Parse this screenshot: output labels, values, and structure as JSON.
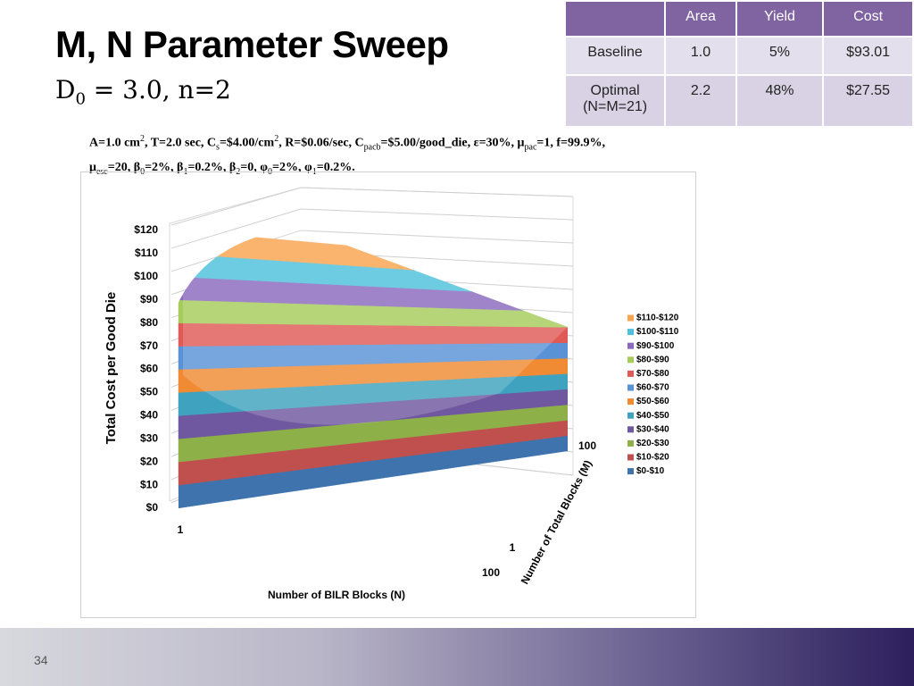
{
  "title": "M, N Parameter Sweep",
  "subtitle": {
    "base": "D",
    "sub": "0",
    "rest": " = 3.0, n=2"
  },
  "parameters": [
    [
      {
        "text": "A=1.0 cm"
      },
      {
        "text": "2",
        "script": "sup"
      },
      {
        "text": ", T=2.0 sec, C"
      },
      {
        "text": "s",
        "script": "sub"
      },
      {
        "text": "=$4.00/cm"
      },
      {
        "text": "2",
        "script": "sup"
      },
      {
        "text": ", R=$0.06/sec, C"
      },
      {
        "text": "pacb",
        "script": "sub"
      },
      {
        "text": "=$5.00/good_die, ε=30%, μ"
      },
      {
        "text": "pac",
        "script": "sub"
      },
      {
        "text": "=1, f=99.9%,"
      }
    ],
    [
      {
        "text": "μ"
      },
      {
        "text": "esc",
        "script": "sub"
      },
      {
        "text": "=20, β"
      },
      {
        "text": "0",
        "script": "sub"
      },
      {
        "text": "=2%, β"
      },
      {
        "text": "1",
        "script": "sub"
      },
      {
        "text": "=0.2%, β"
      },
      {
        "text": "2",
        "script": "sub"
      },
      {
        "text": "=0, φ"
      },
      {
        "text": "0",
        "script": "sub"
      },
      {
        "text": "=2%, φ"
      },
      {
        "text": "1",
        "script": "sub"
      },
      {
        "text": "=0.2%."
      }
    ]
  ],
  "table": {
    "header": [
      "Area",
      "Yield",
      "Cost"
    ],
    "rows": [
      [
        "Baseline",
        "1.0",
        "5%",
        "$93.01"
      ],
      [
        "Optimal (N=M=21)",
        "2.2",
        "48%",
        "$27.55"
      ]
    ]
  },
  "chart_data": {
    "type": "surface3d",
    "xlabel": "Number of BILR Blocks (N)",
    "ylabel": "Total Cost per Good Die",
    "zlabel": "Number of Total Blocks (M)",
    "xlim": [
      1,
      100
    ],
    "xticks": [
      1,
      100
    ],
    "zlim": [
      1,
      100
    ],
    "zticks": [
      1,
      100
    ],
    "ylim": [
      0,
      120
    ],
    "yticks": [
      {
        "value": 0,
        "label": "$0"
      },
      {
        "value": 10,
        "label": "$10"
      },
      {
        "value": 20,
        "label": "$20"
      },
      {
        "value": 30,
        "label": "$30"
      },
      {
        "value": 40,
        "label": "$40"
      },
      {
        "value": 50,
        "label": "$50"
      },
      {
        "value": 60,
        "label": "$60"
      },
      {
        "value": 70,
        "label": "$70"
      },
      {
        "value": 80,
        "label": "$80"
      },
      {
        "value": 90,
        "label": "$90"
      },
      {
        "value": 100,
        "label": "$100"
      },
      {
        "value": 110,
        "label": "$110"
      },
      {
        "value": 120,
        "label": "$120"
      }
    ],
    "grid": true,
    "series": [
      {
        "name": "$0-$10",
        "color": "#3f73ae"
      },
      {
        "name": "$10-$20",
        "color": "#c0504d"
      },
      {
        "name": "$20-$30",
        "color": "#8db049"
      },
      {
        "name": "$30-$40",
        "color": "#7058a0"
      },
      {
        "name": "$40-$50",
        "color": "#3fa3bf"
      },
      {
        "name": "$50-$60",
        "color": "#f08a33"
      },
      {
        "name": "$60-$70",
        "color": "#5a92d6"
      },
      {
        "name": "$70-$80",
        "color": "#e05a56"
      },
      {
        "name": "$80-$90",
        "color": "#a6cc5c"
      },
      {
        "name": "$90-$100",
        "color": "#8a69bf"
      },
      {
        "name": "$100-$110",
        "color": "#4ec0dc"
      },
      {
        "name": "$110-$120",
        "color": "#f9a44e"
      }
    ]
  },
  "page_number": "34"
}
